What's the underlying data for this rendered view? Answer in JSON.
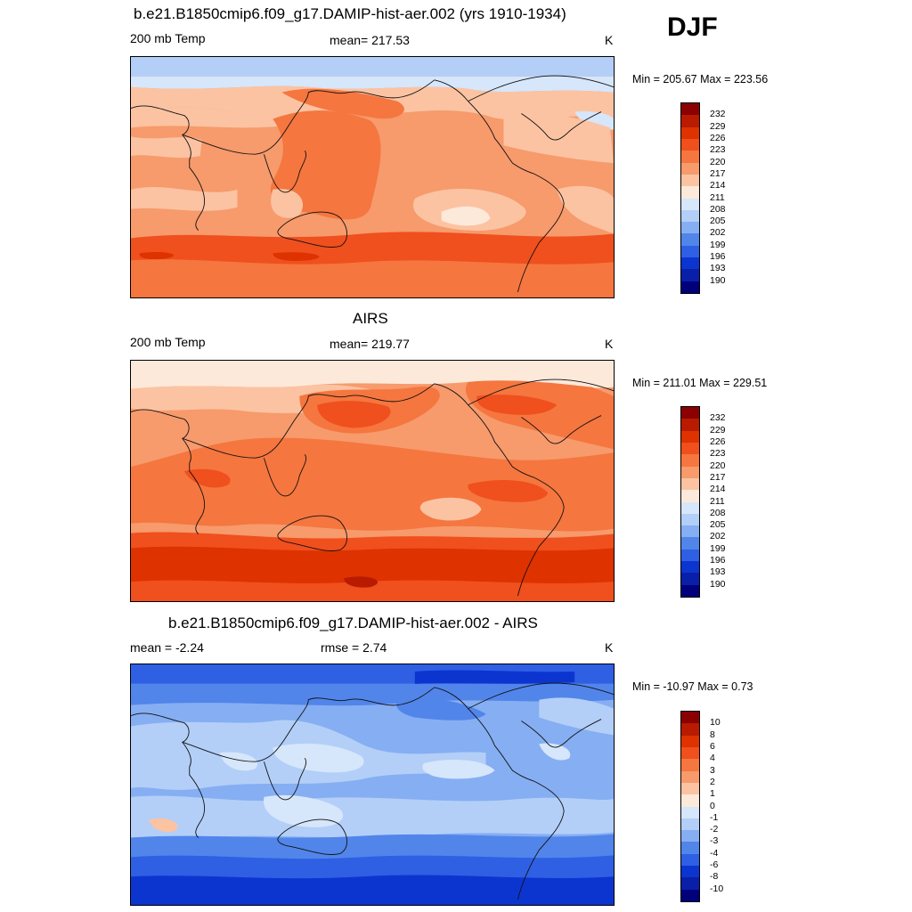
{
  "season": "DJF",
  "panels": [
    {
      "title": "b.e21.B1850cmip6.f09_g17.DAMIP-hist-aer.002 (yrs 1910-1934)",
      "left": "200 mb Temp",
      "center": "mean= 217.53",
      "right": "K",
      "minmax": "Min = 205.67 Max = 223.56",
      "colorbar": {
        "labels": [
          "232",
          "229",
          "226",
          "223",
          "220",
          "217",
          "214",
          "211",
          "208",
          "205",
          "202",
          "199",
          "196",
          "193",
          "190"
        ],
        "colors": [
          "#8b0000",
          "#b81b00",
          "#de3200",
          "#f04f1e",
          "#f5763f",
          "#f79a6c",
          "#fbc3a2",
          "#fde9da",
          "#d6e6fb",
          "#b3cff8",
          "#86aef2",
          "#5285ea",
          "#2f5fe3",
          "#0c35d0",
          "#0a1fa8",
          "#00007a"
        ]
      }
    },
    {
      "title": "AIRS",
      "left": "200 mb Temp",
      "center": "mean= 219.77",
      "right": "K",
      "minmax": "Min = 211.01 Max = 229.51",
      "colorbar": {
        "labels": [
          "232",
          "229",
          "226",
          "223",
          "220",
          "217",
          "214",
          "211",
          "208",
          "205",
          "202",
          "199",
          "196",
          "193",
          "190"
        ],
        "colors": [
          "#8b0000",
          "#b81b00",
          "#de3200",
          "#f04f1e",
          "#f5763f",
          "#f79a6c",
          "#fbc3a2",
          "#fde9da",
          "#d6e6fb",
          "#b3cff8",
          "#86aef2",
          "#5285ea",
          "#2f5fe3",
          "#0c35d0",
          "#0a1fa8",
          "#00007a"
        ]
      }
    },
    {
      "title": "b.e21.B1850cmip6.f09_g17.DAMIP-hist-aer.002 - AIRS",
      "left": "mean =  -2.24",
      "center": "rmse =   2.74",
      "right": "K",
      "minmax": "Min = -10.97 Max =   0.73",
      "colorbar": {
        "labels": [
          "10",
          "8",
          "6",
          "4",
          "3",
          "2",
          "1",
          "0",
          "-1",
          "-2",
          "-3",
          "-4",
          "-6",
          "-8",
          "-10"
        ],
        "colors": [
          "#8b0000",
          "#b81b00",
          "#de3200",
          "#f04f1e",
          "#f5763f",
          "#f79a6c",
          "#fbc3a2",
          "#fde9da",
          "#d6e6fb",
          "#b3cff8",
          "#86aef2",
          "#5285ea",
          "#2f5fe3",
          "#0c35d0",
          "#0a1fa8",
          "#00007a"
        ]
      }
    }
  ]
}
